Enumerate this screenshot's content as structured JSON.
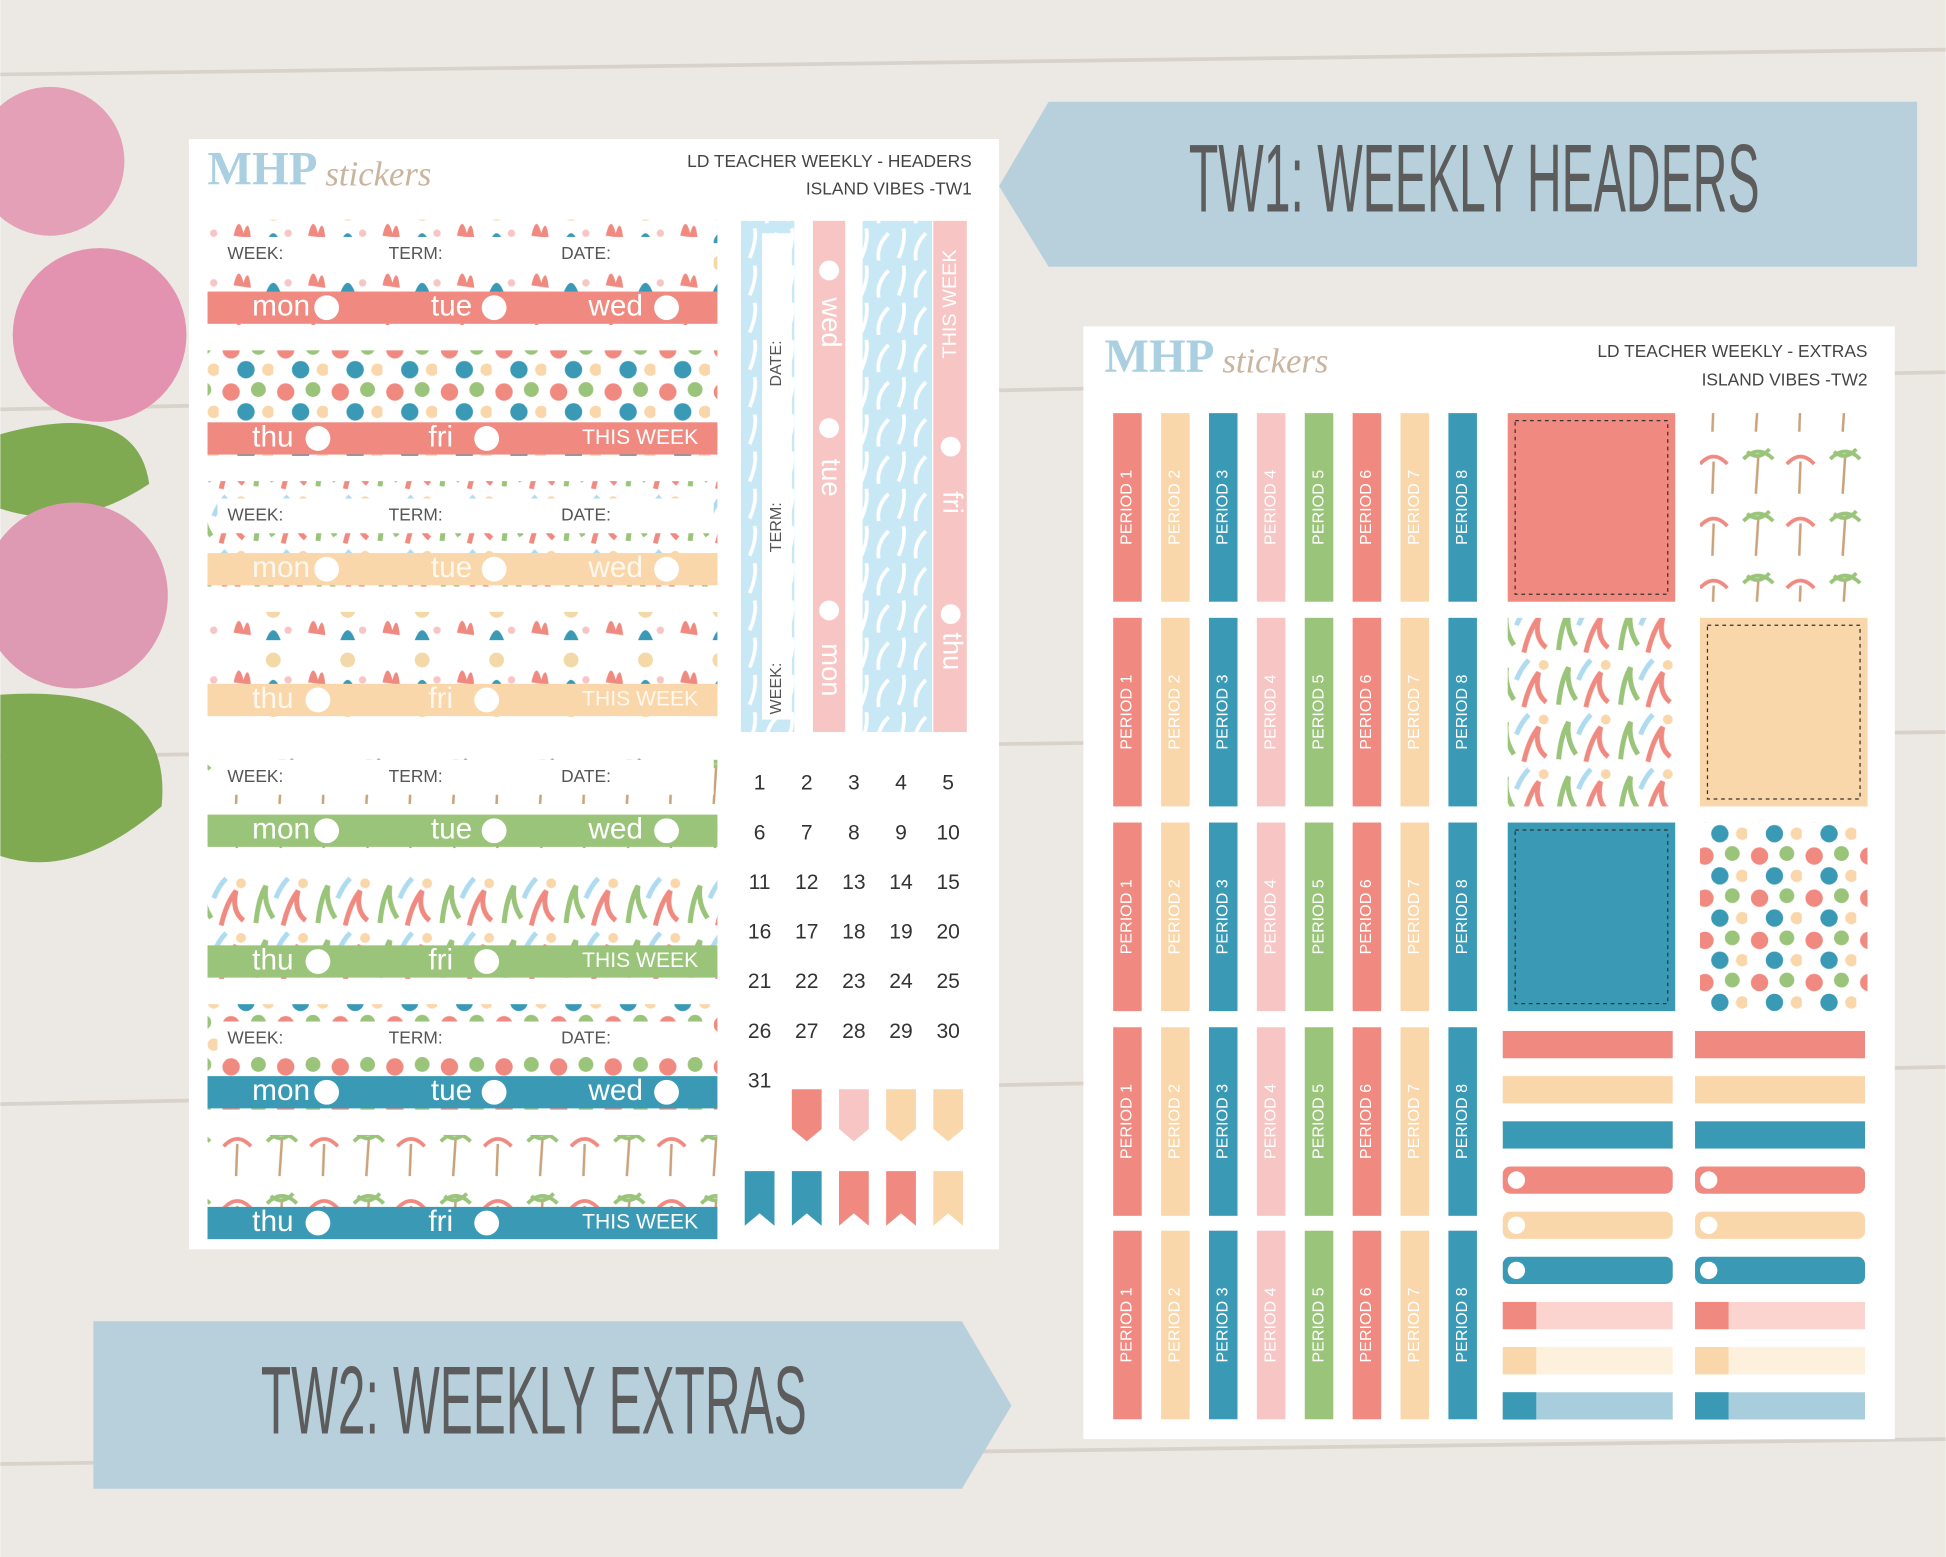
{
  "banners": {
    "top": "TW1: WEEKLY HEADERS",
    "bottom": "TW2: WEEKLY EXTRAS"
  },
  "sheet1": {
    "brand": "MHP",
    "brand_script": "stickers",
    "title": [
      "LD TEACHER WEEKLY - HEADERS",
      "ISLAND VIBES -TW1"
    ],
    "fields": [
      "WEEK:",
      "TERM:",
      "DATE:"
    ],
    "days_a": [
      "mon",
      "tue",
      "wed"
    ],
    "days_b": [
      "thu",
      "fri"
    ],
    "this_week": "THIS WEEK",
    "dates": [
      1,
      2,
      3,
      4,
      5,
      6,
      7,
      8,
      9,
      10,
      11,
      12,
      13,
      14,
      15,
      16,
      17,
      18,
      19,
      20,
      21,
      22,
      23,
      24,
      25,
      26,
      27,
      28,
      29,
      30,
      31
    ]
  },
  "sheet2": {
    "brand": "MHP",
    "brand_script": "stickers",
    "title": [
      "LD TEACHER WEEKLY - EXTRAS",
      "ISLAND VIBES -TW2"
    ],
    "periods": [
      "PERIOD 1",
      "PERIOD 2",
      "PERIOD 3",
      "PERIOD 4",
      "PERIOD 5",
      "PERIOD 6",
      "PERIOD 7",
      "PERIOD 8"
    ]
  }
}
